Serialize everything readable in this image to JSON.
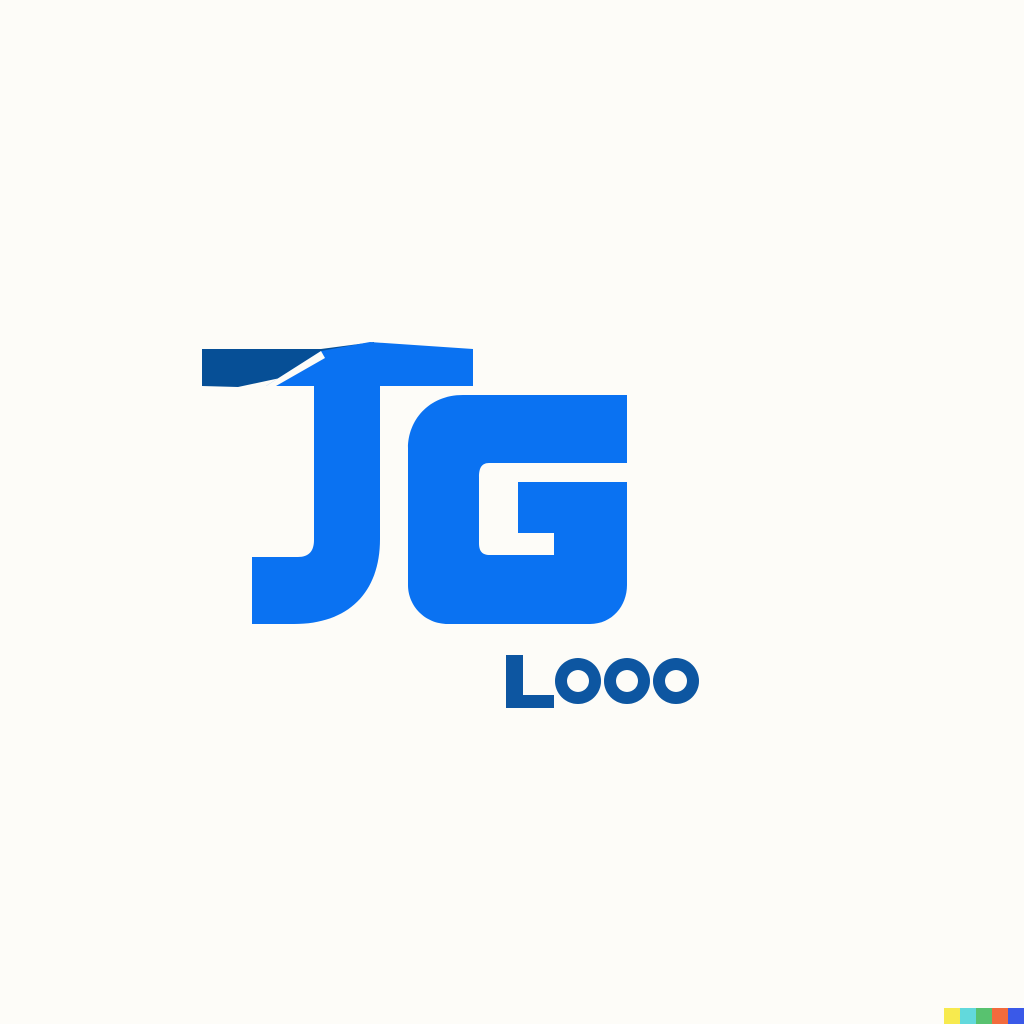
{
  "page": {
    "background": "#fdfcf8"
  },
  "logo": {
    "monogram": "JG",
    "wordmark": "LOOO",
    "colors": {
      "primary_blue": "#0a72f2",
      "dark_blue": "#064f96",
      "wordmark_blue": "#0d56a1"
    }
  },
  "watermark": {
    "colors": [
      "#f7ea4e",
      "#62d9dc",
      "#58c26f",
      "#f26b3d",
      "#3a59e8"
    ]
  }
}
